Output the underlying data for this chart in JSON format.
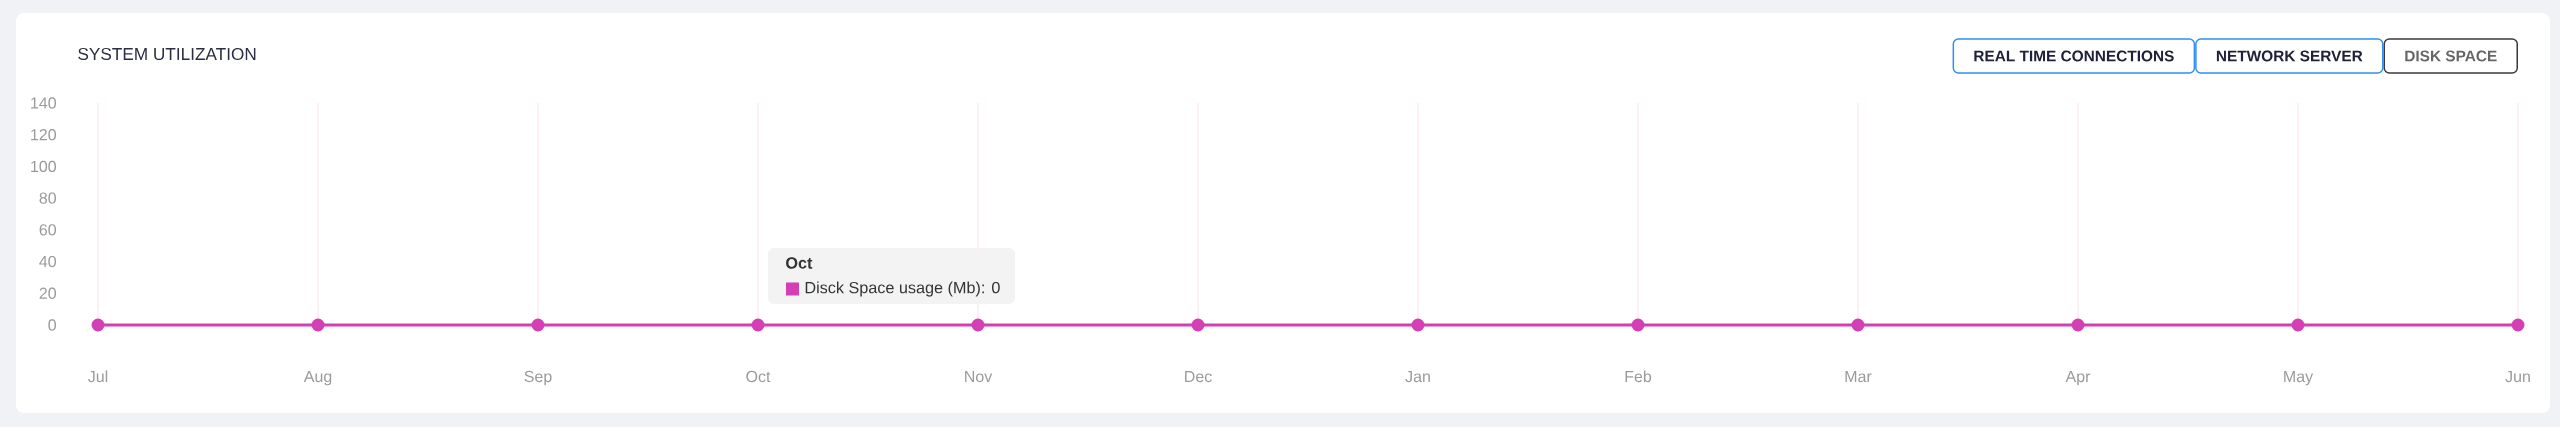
{
  "chart_data": {
    "type": "line",
    "title": "SYSTEM UTILIZATION",
    "categories": [
      "Jul",
      "Aug",
      "Sep",
      "Oct",
      "Nov",
      "Dec",
      "Jan",
      "Feb",
      "Mar",
      "Apr",
      "May",
      "Jun"
    ],
    "series": [
      {
        "name": "Disck Space usage (Mb)",
        "color": "#d43fb6",
        "values": [
          0,
          0,
          0,
          0,
          0,
          0,
          0,
          0,
          0,
          0,
          0,
          0
        ]
      }
    ],
    "ylim": [
      0,
      140
    ],
    "yticks": [
      0,
      20,
      40,
      60,
      80,
      100,
      120,
      140
    ],
    "grid": "x",
    "marker": "circle",
    "line_style": "solid",
    "annotations": [
      "REAL TIME CONNECTIONS",
      "NETWORK SERVER",
      "DISK SPACE",
      "Oct",
      ": 0"
    ]
  }
}
